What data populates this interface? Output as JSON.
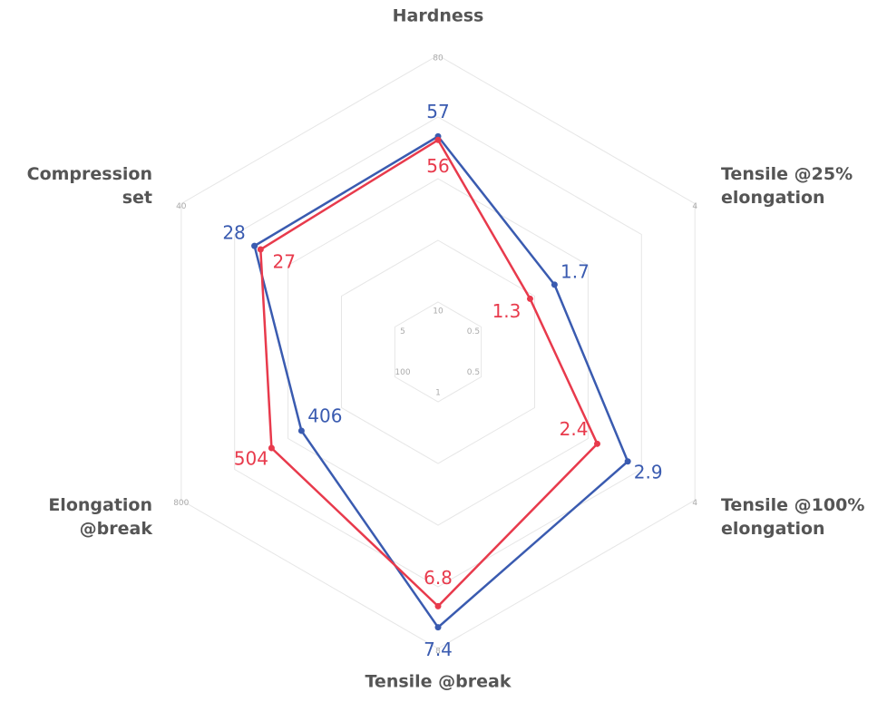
{
  "chart_data": {
    "type": "radar",
    "axes": [
      {
        "label": [
          "Hardness"
        ],
        "min": 10,
        "max": 80
      },
      {
        "label": [
          "Tensile @25%",
          "elongation"
        ],
        "min": 0.5,
        "max": 4
      },
      {
        "label": [
          "Tensile @100%",
          "elongation"
        ],
        "min": 0.5,
        "max": 4
      },
      {
        "label": [
          "Tensile @break"
        ],
        "min": 1,
        "max": 8
      },
      {
        "label": [
          "Elongation",
          "@break"
        ],
        "min": 100,
        "max": 800
      },
      {
        "label": [
          "Compression",
          "set"
        ],
        "min": 5,
        "max": 40
      }
    ],
    "series": [
      {
        "color": "#3a5bb0",
        "values": [
          57,
          1.7,
          2.9,
          7.4,
          406,
          28
        ]
      },
      {
        "color": "#e83a4c",
        "values": [
          56,
          1.3,
          2.4,
          6.8,
          504,
          27
        ]
      }
    ],
    "grid": true
  }
}
